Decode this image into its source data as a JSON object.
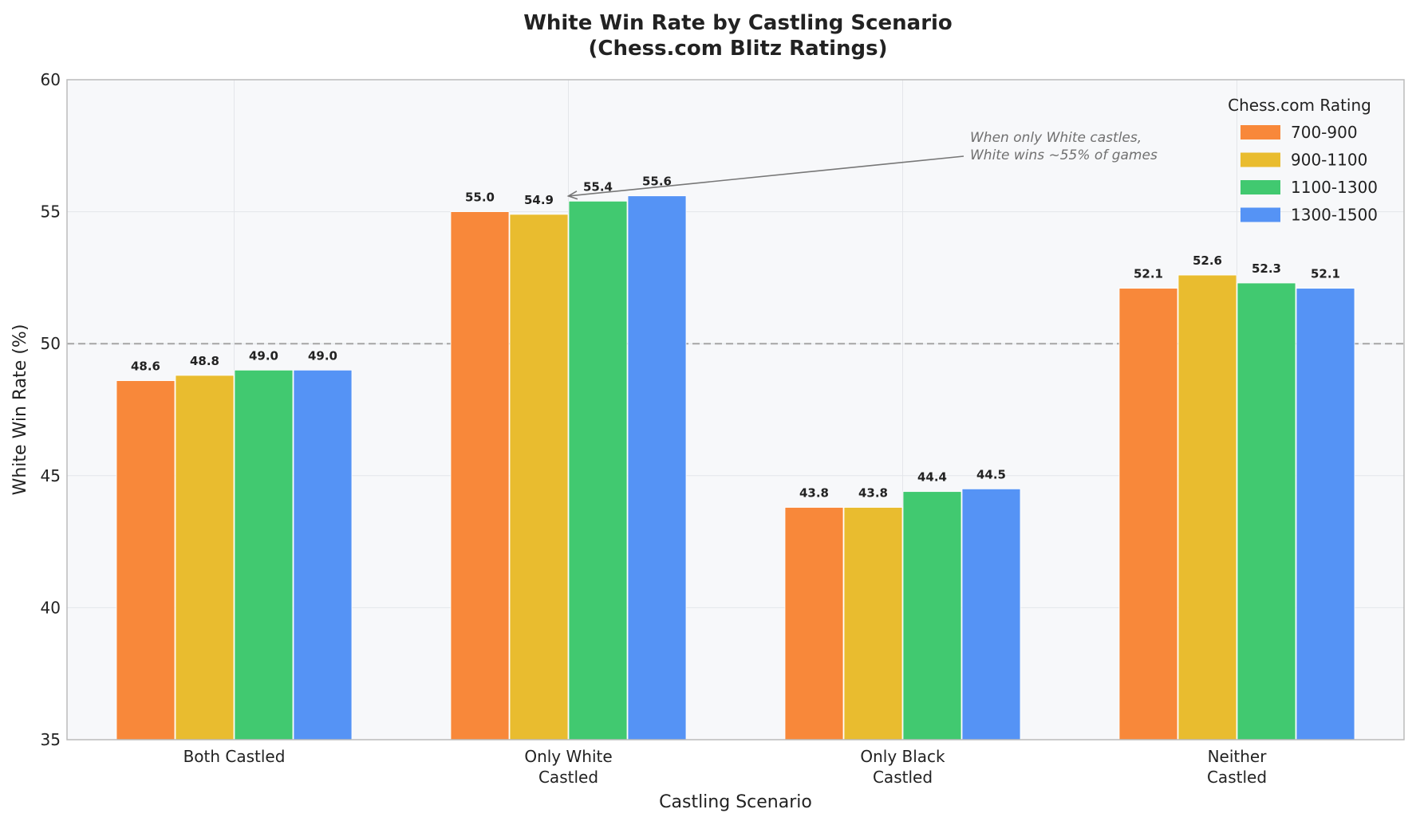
{
  "chart_data": {
    "type": "bar",
    "title": "White Win Rate by Castling Scenario",
    "subtitle": "(Chess.com Blitz Ratings)",
    "xlabel": "Castling Scenario",
    "ylabel": "White Win Rate (%)",
    "ylim": [
      35,
      60
    ],
    "yticks": [
      35,
      40,
      45,
      50,
      55,
      60
    ],
    "categories": [
      [
        "Both Castled"
      ],
      [
        "Only White",
        "Castled"
      ],
      [
        "Only Black",
        "Castled"
      ],
      [
        "Neither",
        "Castled"
      ]
    ],
    "series": [
      {
        "name": "700-900",
        "color": "#F8883A",
        "values": [
          48.6,
          55.0,
          43.8,
          52.1
        ]
      },
      {
        "name": "900-1100",
        "color": "#E9BC2F",
        "values": [
          48.8,
          54.9,
          43.8,
          52.6
        ]
      },
      {
        "name": "1100-1300",
        "color": "#41C970",
        "values": [
          49.0,
          55.4,
          44.4,
          52.3
        ]
      },
      {
        "name": "1300-1500",
        "color": "#5593F5",
        "values": [
          49.0,
          55.6,
          44.5,
          52.1
        ]
      }
    ],
    "reference_line": {
      "y": 50,
      "style": "dashed",
      "color": "#AAAAAA"
    },
    "legend": {
      "title": "Chess.com Rating",
      "position": "top-right"
    },
    "annotation": {
      "lines": [
        "When only White castles,",
        "White wins ~55% of games"
      ],
      "points_to": {
        "category_index": 1,
        "series_index": 1
      }
    },
    "grid": true,
    "plot_background": "#F7F8FA"
  }
}
